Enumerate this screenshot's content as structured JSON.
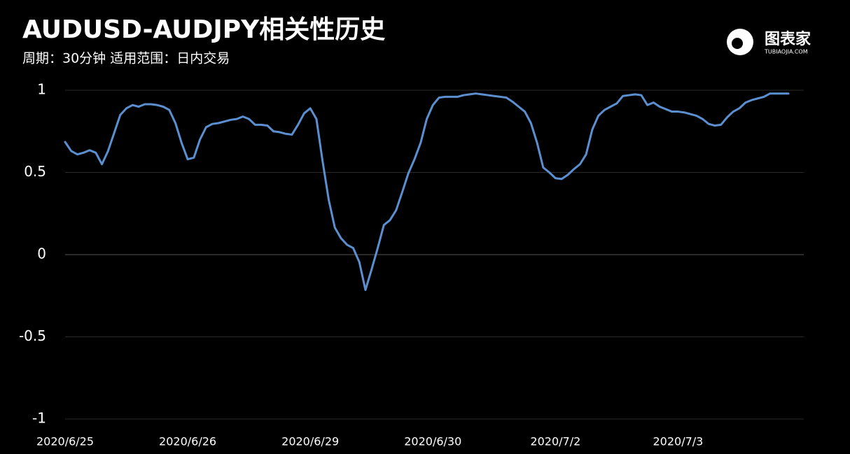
{
  "chart_data": {
    "type": "line",
    "title": "AUDUSD-AUDJPY相关性历史",
    "subtitle": "周期：30分钟  适用范围：日内交易",
    "logo": {
      "text": "图表家",
      "subtext": "TUBIAOJIA.COM"
    },
    "categories": [
      "2020/6/25",
      null,
      null,
      null,
      null,
      null,
      null,
      null,
      null,
      null,
      null,
      null,
      null,
      null,
      null,
      null,
      null,
      null,
      null,
      null,
      "2020/6/26",
      null,
      null,
      null,
      null,
      null,
      null,
      null,
      null,
      null,
      null,
      null,
      null,
      null,
      null,
      null,
      null,
      null,
      null,
      null,
      "2020/6/29",
      null,
      null,
      null,
      null,
      null,
      null,
      null,
      null,
      null,
      null,
      null,
      null,
      null,
      null,
      null,
      null,
      null,
      null,
      null,
      "2020/6/30",
      null,
      null,
      null,
      null,
      null,
      null,
      null,
      null,
      null,
      null,
      null,
      null,
      null,
      null,
      null,
      null,
      null,
      null,
      null,
      "2020/7/2",
      null,
      null,
      null,
      null,
      null,
      null,
      null,
      null,
      null,
      null,
      null,
      null,
      null,
      null,
      null,
      null,
      null,
      null,
      null,
      "2020/7/3",
      null,
      null,
      null,
      null,
      null,
      null,
      null,
      null,
      null,
      null,
      null,
      null,
      null,
      null,
      null,
      null,
      null,
      null
    ],
    "series": [
      {
        "name": "AUDUSD-AUDJPY",
        "color": "#5b8fd0",
        "values": [
          0.685,
          0.63,
          0.61,
          0.62,
          0.635,
          0.62,
          0.55,
          0.63,
          0.74,
          0.85,
          0.89,
          0.91,
          0.9,
          0.915,
          0.915,
          0.91,
          0.9,
          0.88,
          0.8,
          0.68,
          0.58,
          0.59,
          0.7,
          0.775,
          0.795,
          0.8,
          0.81,
          0.82,
          0.825,
          0.84,
          0.825,
          0.79,
          0.79,
          0.785,
          0.75,
          0.745,
          0.735,
          0.73,
          0.79,
          0.86,
          0.89,
          0.825,
          0.57,
          0.335,
          0.165,
          0.1,
          0.06,
          0.04,
          -0.045,
          -0.215,
          -0.09,
          0.04,
          0.18,
          0.21,
          0.27,
          0.38,
          0.495,
          0.58,
          0.68,
          0.825,
          0.91,
          0.955,
          0.96,
          0.96,
          0.96,
          0.97,
          0.975,
          0.98,
          0.975,
          0.97,
          0.965,
          0.96,
          0.955,
          0.93,
          0.9,
          0.87,
          0.8,
          0.68,
          0.53,
          0.5,
          0.465,
          0.46,
          0.485,
          0.52,
          0.55,
          0.61,
          0.76,
          0.845,
          0.88,
          0.9,
          0.92,
          0.965,
          0.97,
          0.975,
          0.97,
          0.91,
          0.925,
          0.9,
          0.885,
          0.87,
          0.87,
          0.865,
          0.855,
          0.845,
          0.825,
          0.795,
          0.785,
          0.79,
          0.835,
          0.87,
          0.89,
          0.925,
          0.94,
          0.95,
          0.96,
          0.98,
          0.98,
          0.98,
          0.98
        ]
      }
    ],
    "ylim": [
      -1,
      1
    ],
    "yticks": [
      -1,
      -0.5,
      0,
      0.5,
      1
    ],
    "grid": true
  }
}
